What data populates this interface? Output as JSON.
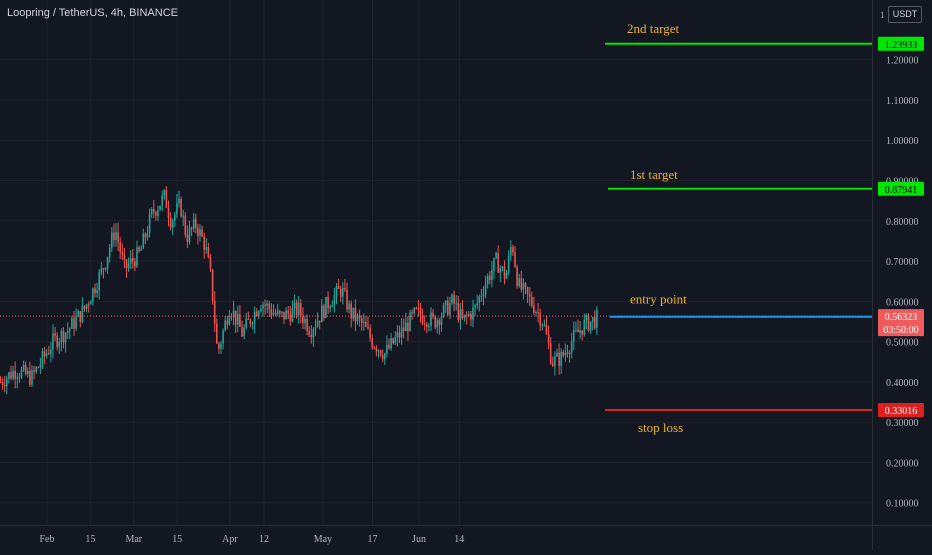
{
  "header": {
    "title": "Loopring / TetherUS, 4h, BINANCE",
    "currency": "USDT",
    "scale_mark": "1"
  },
  "colors": {
    "up": "#26a69a",
    "down": "#ef5350",
    "target": "#00e600",
    "entry": "#2196f3",
    "stop": "#e02020",
    "annotation": "#f0b429",
    "price": "#f05a5a"
  },
  "chart_data": {
    "type": "candlestick",
    "title": "Loopring / TetherUS, 4h, BINANCE",
    "x_ticks": [
      "Feb",
      "15",
      "Mar",
      "15",
      "Apr",
      "12",
      "May",
      "17",
      "Jun",
      "14"
    ],
    "y_ticks": [
      "0.10000",
      "0.20000",
      "0.30000",
      "0.40000",
      "0.50000",
      "0.60000",
      "0.70000",
      "0.80000",
      "0.90000",
      "1.00000",
      "1.10000",
      "1.20000"
    ],
    "ylim": [
      0.0,
      1.3
    ],
    "grid": true,
    "price_path": [
      [
        0,
        0.4
      ],
      [
        5,
        0.43
      ],
      [
        10,
        0.41
      ],
      [
        17,
        0.5
      ],
      [
        22,
        0.53
      ],
      [
        27,
        0.58
      ],
      [
        33,
        0.68
      ],
      [
        37,
        0.78
      ],
      [
        40,
        0.68
      ],
      [
        45,
        0.72
      ],
      [
        49,
        0.82
      ],
      [
        53,
        0.86
      ],
      [
        55,
        0.8
      ],
      [
        58,
        0.84
      ],
      [
        60,
        0.76
      ],
      [
        63,
        0.79
      ],
      [
        66,
        0.74
      ],
      [
        68,
        0.65
      ],
      [
        70,
        0.47
      ],
      [
        74,
        0.59
      ],
      [
        78,
        0.52
      ],
      [
        84,
        0.6
      ],
      [
        90,
        0.56
      ],
      [
        96,
        0.58
      ],
      [
        100,
        0.53
      ],
      [
        106,
        0.6
      ],
      [
        110,
        0.63
      ],
      [
        113,
        0.57
      ],
      [
        117,
        0.54
      ],
      [
        120,
        0.5
      ],
      [
        124,
        0.47
      ],
      [
        129,
        0.52
      ],
      [
        134,
        0.57
      ],
      [
        140,
        0.55
      ],
      [
        146,
        0.6
      ],
      [
        149,
        0.55
      ],
      [
        153,
        0.58
      ],
      [
        156,
        0.64
      ],
      [
        160,
        0.7
      ],
      [
        163,
        0.66
      ],
      [
        165,
        0.75
      ],
      [
        167,
        0.64
      ],
      [
        172,
        0.59
      ],
      [
        175,
        0.55
      ],
      [
        178,
        0.45
      ],
      [
        181,
        0.46
      ],
      [
        184,
        0.5
      ],
      [
        188,
        0.54
      ],
      [
        193,
        0.56
      ]
    ],
    "levels": [
      {
        "name": "2nd target",
        "value": 1.23933,
        "label": "1.23933",
        "type": "target"
      },
      {
        "name": "1st target",
        "value": 0.87941,
        "label": "0.87941",
        "type": "target"
      },
      {
        "name": "entry point",
        "value": 0.56182,
        "label": "0.56182",
        "type": "entry"
      },
      {
        "name": "stop loss",
        "value": 0.33016,
        "label": "0.33016",
        "type": "stop"
      }
    ],
    "last_price": {
      "value": 0.56323,
      "label": "0.56323",
      "countdown": "03:50:00"
    }
  }
}
